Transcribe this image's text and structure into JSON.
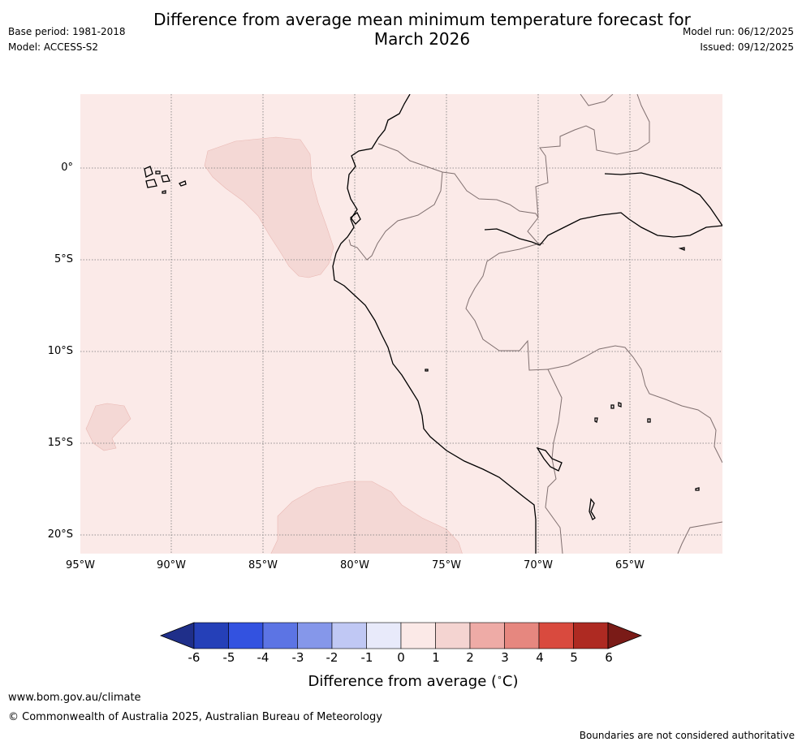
{
  "header": {
    "title": "Difference from average mean minimum temperature forecast for",
    "title_line2": "March 2026",
    "base_period": "Base period: 1981-2018",
    "model": "Model: ACCESS-S2",
    "model_run": "Model run: 06/12/2025",
    "issued": "Issued: 09/12/2025"
  },
  "map": {
    "background_color": "#fbeae8",
    "anomaly_patch_color": "#f4d8d5",
    "lat_labels": [
      "0°",
      "5°S",
      "10°S",
      "15°S",
      "20°S"
    ],
    "lon_labels": [
      "95°W",
      "90°W",
      "85°W",
      "80°W",
      "75°W",
      "70°W",
      "65°W"
    ]
  },
  "colorbar": {
    "ticks": [
      "-6",
      "-5",
      "-4",
      "-3",
      "-2",
      "-1",
      "0",
      "1",
      "2",
      "3",
      "4",
      "5",
      "6"
    ],
    "colors": [
      "#1f2f8a",
      "#2540b8",
      "#3352e0",
      "#5c74e4",
      "#8597ea",
      "#c0c8f4",
      "#e8eafa",
      "#fbe9e7",
      "#f4d4d1",
      "#eeaba6",
      "#e6877f",
      "#d94a3e",
      "#ae2a22",
      "#7a1b17"
    ],
    "label": "Difference from average (",
    "label_unit": "C)",
    "degree_symbol": "∘"
  },
  "footer": {
    "url": "www.bom.gov.au/climate",
    "copyright": "© Commonwealth of Australia 2025, Australian Bureau of Meteorology",
    "disclaimer": "Boundaries are not considered authoritative"
  }
}
